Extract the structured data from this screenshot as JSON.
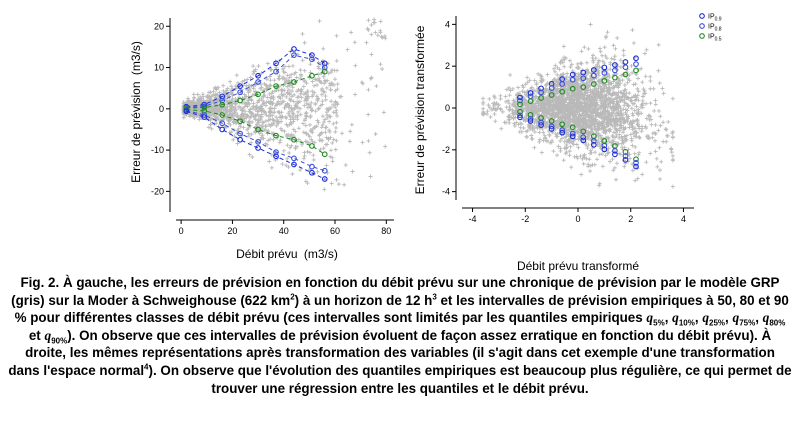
{
  "colors": {
    "gris": "#b9b9b9",
    "q90": "#1a2bd8",
    "q80": "#3a4fd9",
    "q50": "#1f8a1f"
  },
  "chart_data": [
    {
      "type": "scatter",
      "title": "",
      "xlabel": "Débit prévu",
      "xlabel_unit": "(m3/s)",
      "ylabel": "Erreur de prévision",
      "ylabel_unit": "(m3/s)",
      "xlim": [
        -2,
        83
      ],
      "ylim": [
        -25,
        22
      ],
      "xticks": [
        "0",
        "20",
        "40",
        "60",
        "80"
      ],
      "yticks": [
        "-20",
        "-10",
        "0",
        "10",
        "20"
      ],
      "grid": false,
      "background_points": "grey plus markers (errors for each forecast)",
      "quantile_x": [
        2,
        9,
        16,
        23,
        30,
        37,
        44,
        51,
        56
      ],
      "series": [
        {
          "key": "q90_upper",
          "values": [
            0.5,
            1.0,
            3.0,
            5.5,
            8.0,
            11.0,
            14.5,
            13.0,
            11.0
          ]
        },
        {
          "key": "q80_upper",
          "values": [
            0.3,
            0.6,
            2.0,
            4.0,
            6.5,
            9.0,
            13.0,
            12.0,
            10.0
          ]
        },
        {
          "key": "q50_upper",
          "values": [
            0.2,
            0.3,
            1.0,
            2.0,
            3.5,
            5.5,
            6.5,
            8.0,
            9.0
          ]
        },
        {
          "key": "q50_lower",
          "values": [
            -0.2,
            -0.5,
            -1.5,
            -3.0,
            -5.0,
            -6.5,
            -7.5,
            -9.0,
            -11.0
          ]
        },
        {
          "key": "q80_lower",
          "values": [
            -0.4,
            -1.5,
            -3.5,
            -6.0,
            -8.0,
            -10.5,
            -12.0,
            -14.0,
            -15.0
          ]
        },
        {
          "key": "q90_lower",
          "values": [
            -0.6,
            -2.0,
            -5.0,
            -7.5,
            -9.5,
            -11.5,
            -13.5,
            -15.5,
            -17.0
          ]
        }
      ]
    },
    {
      "type": "scatter",
      "title": "",
      "xlabel": "Débit prévu transformé",
      "ylabel": "Erreur de prévision transformée",
      "xlim": [
        -4.4,
        4.4
      ],
      "ylim": [
        -4.4,
        4.4
      ],
      "xticks": [
        "-4",
        "-2",
        "0",
        "2",
        "4"
      ],
      "yticks": [
        "-4",
        "-2",
        "0",
        "2",
        "4"
      ],
      "grid": false,
      "legend": {
        "position": "top-right",
        "entries": [
          "IP",
          "IP",
          "IP"
        ],
        "subscripts": [
          "0.9",
          "0.8",
          "0.5"
        ]
      },
      "background_points": "grey plus markers",
      "quantile_x": [
        -2.2,
        -1.8,
        -1.4,
        -1.0,
        -0.6,
        -0.2,
        0.2,
        0.6,
        1.0,
        1.4,
        1.8,
        2.2
      ],
      "series": [
        {
          "key": "q90_upper",
          "values": [
            0.5,
            0.72,
            0.94,
            1.16,
            1.38,
            1.6,
            1.7,
            1.82,
            1.94,
            2.06,
            2.2,
            2.38
          ]
        },
        {
          "key": "q80_upper",
          "values": [
            0.35,
            0.55,
            0.75,
            0.95,
            1.15,
            1.35,
            1.42,
            1.55,
            1.68,
            1.8,
            1.95,
            2.1
          ]
        },
        {
          "key": "q50_upper",
          "values": [
            0.18,
            0.33,
            0.48,
            0.62,
            0.78,
            0.92,
            1.0,
            1.15,
            1.3,
            1.45,
            1.6,
            1.8
          ]
        },
        {
          "key": "q50_lower",
          "values": [
            -0.18,
            -0.33,
            -0.48,
            -0.62,
            -0.78,
            -0.92,
            -1.12,
            -1.35,
            -1.58,
            -1.82,
            -2.1,
            -2.45
          ]
        },
        {
          "key": "q80_lower",
          "values": [
            -0.35,
            -0.52,
            -0.7,
            -0.88,
            -1.05,
            -1.22,
            -1.4,
            -1.58,
            -1.8,
            -2.05,
            -2.3,
            -2.62
          ]
        },
        {
          "key": "q90_lower",
          "values": [
            -0.45,
            -0.62,
            -0.82,
            -1.0,
            -1.18,
            -1.36,
            -1.55,
            -1.76,
            -1.98,
            -2.22,
            -2.48,
            -2.8
          ]
        }
      ]
    }
  ],
  "caption": {
    "fig_label": "Fig. 2.",
    "text_1": "À gauche, les erreurs de prévision en fonction du débit prévu sur une chronique de prévision par le modèle GRP (gris) sur la Moder à Schweighouse (622 km",
    "sup_1": "2",
    "text_2": ") à un horizon de 12 h",
    "sup_2": "3",
    "text_3": " et les intervalles de prévision empiriques à 50, 80 et 90 % pour différentes classes de débit prévu (ces intervalles sont limités par les quantiles empiriques ",
    "q5": "q",
    "q5_sub": "5%",
    "q10": "q",
    "q10_sub": "10%",
    "q25": "q",
    "q25_sub": "25%",
    "q75": "q",
    "q75_sub": "75%",
    "q80": "q",
    "q80_sub": "80%",
    "and_word": " et ",
    "q90": "q",
    "q90_sub": "90%",
    "text_4": "). On observe  que ces intervalles de prévision évoluent de façon assez erratique en fonction du débit prévu). À droite, les mêmes représentations après transformation des variables (il s'agit dans cet exemple d'une transformation dans l'espace normal",
    "sup_4": "4",
    "text_5": "). On observe que l'évolution des quantiles empiriques est beaucoup plus régulière, ce qui permet de trouver une régression entre les quantiles et le débit prévu."
  }
}
